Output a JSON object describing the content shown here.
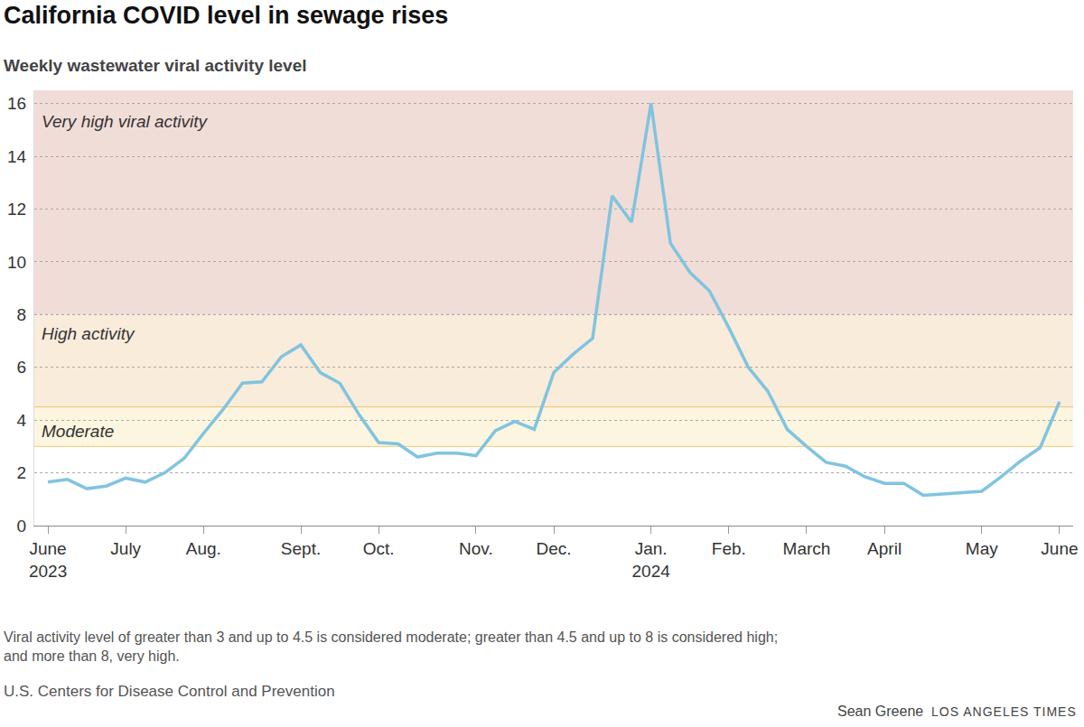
{
  "chart_data": {
    "type": "line",
    "title": "California COVID level in sewage rises",
    "subtitle": "Weekly wastewater viral activity level",
    "categories": [
      "June\n2023",
      null,
      null,
      null,
      "July",
      null,
      null,
      null,
      "Aug.",
      null,
      null,
      null,
      null,
      "Sept.",
      null,
      null,
      null,
      "Oct.",
      null,
      null,
      null,
      null,
      "Nov.",
      null,
      null,
      null,
      "Dec.",
      null,
      null,
      null,
      null,
      "Jan.\n2024",
      null,
      null,
      null,
      "Feb.",
      null,
      null,
      null,
      "March",
      null,
      null,
      null,
      "April",
      null,
      null,
      null,
      null,
      "May",
      null,
      null,
      null,
      "June"
    ],
    "values": [
      1.65,
      1.75,
      1.4,
      1.5,
      1.8,
      1.65,
      2.0,
      2.55,
      3.5,
      4.4,
      5.4,
      5.45,
      6.4,
      6.85,
      5.8,
      5.4,
      4.2,
      3.15,
      3.1,
      2.6,
      2.75,
      2.75,
      2.65,
      3.6,
      3.95,
      3.65,
      5.8,
      6.5,
      7.1,
      12.5,
      11.5,
      16.0,
      10.7,
      9.6,
      8.9,
      7.5,
      6.0,
      5.1,
      3.65,
      3.0,
      2.4,
      2.25,
      1.85,
      1.6,
      1.6,
      1.15,
      1.2,
      1.25,
      1.3,
      1.85,
      2.45,
      2.95,
      4.7
    ],
    "color": "#80c4e0",
    "ylim": [
      0,
      16.5
    ],
    "yticks": [
      0,
      2,
      4,
      6,
      8,
      10,
      12,
      14,
      16
    ],
    "grid": true,
    "bands": [
      {
        "name": "Moderate",
        "from": 3,
        "to": 4.5,
        "color": "#fcf5df"
      },
      {
        "name": "High activity",
        "from": 4.5,
        "to": 8,
        "color": "#f9ecda"
      },
      {
        "name": "Very high viral activity",
        "from": 8,
        "to": null,
        "color": "#f1ddd7"
      }
    ],
    "note": [
      "Viral activity level of greater than 3 and up to 4.5 is considered moderate; greater than 4.5 and up to 8 is considered high;",
      "and more than 8, very high."
    ],
    "source": "U.S. Centers for Disease Control and Prevention",
    "credit": [
      "Sean Greene",
      "LOS ANGELES TIMES"
    ]
  }
}
